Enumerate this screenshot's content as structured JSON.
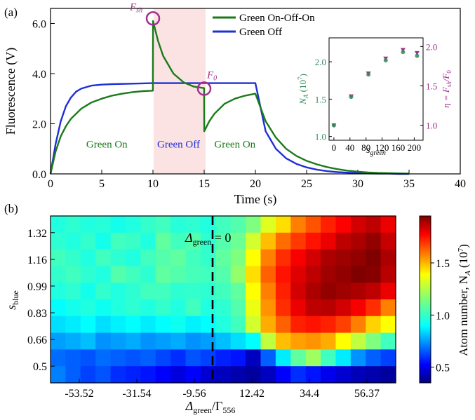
{
  "chart_data": [
    {
      "panel_label": "(a)",
      "type": "line",
      "xlabel": "Time (s)",
      "ylabel": "Fluorescence (V)",
      "xlim": [
        0,
        40
      ],
      "ylim": [
        0,
        6.6
      ],
      "xticks": [
        0,
        5,
        10,
        15,
        20,
        25,
        30,
        35,
        40
      ],
      "yticks": [
        "0.0",
        "2.0",
        "4.0",
        "6.0"
      ],
      "legend_position": "top-right",
      "shaded_interval": [
        10,
        15
      ],
      "series": [
        {
          "name": "Green On-Off-On",
          "color": "#1a7a1a",
          "x": [
            0,
            0.5,
            1,
            1.5,
            2,
            3,
            4,
            5,
            6,
            7,
            8,
            9,
            9.99,
            10.01,
            10.5,
            11,
            12,
            13,
            14,
            14.99,
            15.01,
            15.5,
            16,
            17,
            18,
            19,
            20,
            21,
            22,
            23,
            24,
            25,
            26,
            27,
            28,
            29,
            30,
            31,
            32,
            33,
            34,
            35
          ],
          "values": [
            0,
            0.9,
            1.5,
            1.9,
            2.2,
            2.6,
            2.85,
            3.0,
            3.12,
            3.2,
            3.26,
            3.3,
            3.32,
            6.1,
            5.3,
            4.7,
            4.0,
            3.65,
            3.48,
            3.42,
            1.7,
            2.1,
            2.4,
            2.8,
            3.0,
            3.12,
            3.2,
            2.1,
            1.45,
            1.0,
            0.72,
            0.52,
            0.38,
            0.27,
            0.19,
            0.13,
            0.09,
            0.06,
            0.04,
            0.03,
            0.02,
            0.01
          ]
        },
        {
          "name": "Green Off",
          "color": "#1f2fd6",
          "x": [
            0,
            0.5,
            1,
            1.5,
            2,
            2.5,
            3,
            4,
            5,
            6,
            8,
            10,
            12,
            14,
            16,
            18,
            20,
            21,
            22,
            23,
            24,
            25,
            26,
            27,
            28,
            29,
            30,
            31,
            32,
            33,
            34,
            35
          ],
          "values": [
            0,
            1.2,
            2.1,
            2.7,
            3.05,
            3.28,
            3.4,
            3.52,
            3.56,
            3.58,
            3.6,
            3.62,
            3.62,
            3.62,
            3.62,
            3.62,
            3.62,
            1.7,
            1.0,
            0.62,
            0.4,
            0.26,
            0.17,
            0.11,
            0.07,
            0.05,
            0.03,
            0.02,
            0.01,
            0.01,
            0.0,
            0.0
          ]
        }
      ],
      "annotations": [
        {
          "text": "F",
          "sub": "sh",
          "x": 10.0,
          "y": 6.2,
          "color": "#a0308f"
        },
        {
          "text": "F",
          "sub": "0",
          "x": 15.0,
          "y": 3.4,
          "color": "#a0308f"
        },
        {
          "text": "Green On",
          "x": 5.5,
          "y": 1.05,
          "color": "#1a7a1a"
        },
        {
          "text": "Green Off",
          "x": 12.5,
          "y": 1.05,
          "color": "#1f2fd6"
        },
        {
          "text": "Green On",
          "x": 18.0,
          "y": 1.05,
          "color": "#1a7a1a"
        }
      ]
    },
    {
      "panel_label": "inset",
      "type": "scatter",
      "xlabel": "s",
      "xlabel_sub": "green",
      "ylabel_left": "N",
      "ylabel_left_sub": "A",
      "ylabel_left_rest": "(10",
      "ylabel_left_exp": "7",
      "ylabel_left_close": ")",
      "ylabel_right": "η = F",
      "ylabel_right_sub": "sh",
      "ylabel_right_rest": "/F",
      "ylabel_right_sub2": "0",
      "xlim": [
        -12,
        222
      ],
      "ylim_left": [
        0.95,
        2.32
      ],
      "ylim_right": [
        0.81,
        2.11
      ],
      "xticks": [
        0,
        40,
        80,
        120,
        160,
        200
      ],
      "yticks_left": [
        "1.0",
        "1.5",
        "2.0"
      ],
      "yticks_right": [
        "1.0",
        "1.5",
        "2.0"
      ],
      "series": [
        {
          "name": "N_A",
          "axis": "left",
          "color": "#2e8b57",
          "marker": "circle",
          "x": [
            0,
            43,
            86,
            129,
            172,
            207
          ],
          "values": [
            1.15,
            1.53,
            1.83,
            2.02,
            2.13,
            2.08
          ]
        },
        {
          "name": "eta",
          "axis": "right",
          "color": "#a0308f",
          "marker": "triangle",
          "x": [
            0,
            43,
            86,
            129,
            172,
            207
          ],
          "values": [
            1.0,
            1.37,
            1.66,
            1.85,
            1.96,
            1.92
          ]
        }
      ]
    },
    {
      "panel_label": "(b)",
      "type": "heatmap",
      "xlabel": "Δ",
      "xlabel_sub": "green",
      "xlabel_rest": "/Γ",
      "xlabel_sub2": "556",
      "ylabel": "s",
      "ylabel_sub": "blue",
      "x_ticklabels": [
        "-53.52",
        "-31.54",
        "-9.56",
        "12.42",
        "34.4",
        "56.37"
      ],
      "y_ticklabels": [
        "0.5",
        "0.66",
        "0.83",
        "0.99",
        "1.16",
        "1.32"
      ],
      "colorbar_label": "Atom number, N",
      "colorbar_label_sub": "A",
      "colorbar_label_rest": "(10",
      "colorbar_label_exp": "7",
      "colorbar_label_close": ")",
      "colorbar_ticks": [
        "0.5",
        "1.0",
        "1.5"
      ],
      "zlim": [
        0.35,
        1.95
      ],
      "colormap": "jet",
      "dashed_line_label": "Δ",
      "dashed_line_label_sub": "green",
      "dashed_line_label_rest": " = 0",
      "rows_top_to_bottom": [
        [
          1.0,
          1.02,
          1.0,
          1.01,
          0.98,
          1.0,
          1.03,
          1.05,
          1.01,
          1.02,
          1.0,
          1.05,
          1.08,
          1.15,
          1.3,
          1.4,
          1.55,
          1.62,
          1.7,
          1.75,
          1.82,
          1.85,
          1.78
        ],
        [
          1.02,
          1.0,
          1.03,
          0.98,
          1.05,
          1.04,
          1.0,
          1.1,
          1.05,
          1.08,
          1.02,
          1.08,
          1.12,
          1.28,
          1.45,
          1.58,
          1.66,
          1.72,
          1.78,
          1.85,
          1.88,
          1.92,
          1.84
        ],
        [
          1.05,
          1.03,
          1.0,
          1.05,
          1.02,
          1.0,
          1.05,
          1.08,
          1.1,
          1.05,
          1.03,
          1.1,
          1.15,
          1.35,
          1.55,
          1.68,
          1.76,
          1.82,
          1.88,
          1.9,
          1.92,
          1.95,
          1.88
        ],
        [
          1.03,
          1.05,
          1.02,
          1.0,
          1.08,
          1.05,
          1.02,
          1.1,
          1.08,
          1.06,
          1.05,
          1.08,
          1.18,
          1.4,
          1.6,
          1.72,
          1.8,
          1.85,
          1.9,
          1.92,
          1.95,
          1.94,
          1.86
        ],
        [
          1.0,
          1.02,
          0.98,
          1.03,
          1.0,
          1.02,
          1.05,
          1.05,
          1.02,
          1.03,
          1.02,
          1.05,
          1.1,
          1.35,
          1.55,
          1.7,
          1.82,
          1.88,
          1.92,
          1.9,
          1.88,
          1.85,
          1.78
        ],
        [
          0.95,
          0.98,
          1.0,
          0.97,
          1.0,
          1.02,
          1.0,
          1.03,
          1.0,
          1.05,
          1.0,
          1.02,
          1.08,
          1.32,
          1.52,
          1.68,
          1.78,
          1.85,
          1.86,
          1.82,
          1.76,
          1.68,
          1.55
        ],
        [
          0.9,
          0.92,
          0.95,
          0.9,
          0.93,
          0.95,
          0.92,
          0.95,
          0.97,
          0.93,
          0.95,
          1.0,
          1.05,
          1.28,
          1.48,
          1.6,
          1.7,
          1.72,
          1.7,
          1.65,
          1.55,
          1.42,
          1.35
        ],
        [
          0.8,
          0.82,
          0.85,
          0.78,
          0.8,
          0.82,
          0.78,
          0.8,
          0.82,
          0.78,
          0.8,
          0.85,
          0.9,
          0.95,
          1.25,
          1.45,
          1.5,
          1.52,
          1.48,
          1.35,
          1.25,
          1.15,
          1.05
        ],
        [
          0.72,
          0.7,
          0.68,
          0.72,
          0.7,
          0.68,
          0.7,
          0.66,
          0.62,
          0.68,
          0.65,
          0.6,
          0.58,
          0.45,
          0.7,
          0.92,
          1.1,
          1.2,
          1.05,
          0.92,
          0.78,
          0.7,
          0.65
        ],
        [
          0.75,
          0.7,
          0.65,
          0.68,
          0.62,
          0.6,
          0.58,
          0.55,
          0.5,
          0.55,
          0.48,
          0.45,
          0.42,
          0.4,
          0.45,
          0.55,
          0.62,
          0.58,
          0.52,
          0.48,
          0.44,
          0.42,
          0.4
        ]
      ]
    }
  ]
}
